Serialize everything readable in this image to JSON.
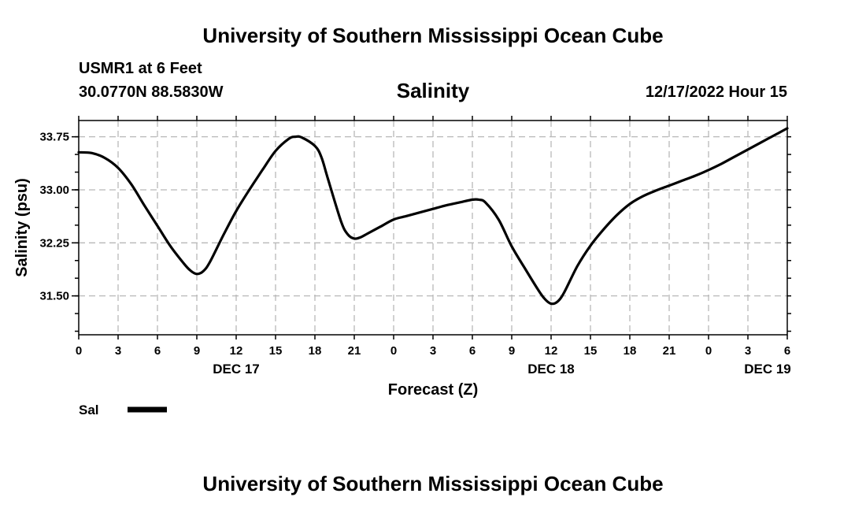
{
  "header": {
    "title": "University of Southern Mississippi Ocean Cube",
    "station": "USMR1 at 6 Feet",
    "coordinates": "30.0770N  88.5830W",
    "datetime": "12/17/2022 Hour 15"
  },
  "footer": {
    "title": "University of Southern Mississippi Ocean Cube"
  },
  "chart_data": {
    "type": "line",
    "title": "Salinity",
    "xlabel": "Forecast (Z)",
    "ylabel": "Salinity (psu)",
    "xlim": [
      0,
      54
    ],
    "ylim": [
      30.95,
      33.98
    ],
    "grid": true,
    "x_ticks": [
      {
        "value": 0,
        "label": "0"
      },
      {
        "value": 3,
        "label": "3"
      },
      {
        "value": 6,
        "label": "6"
      },
      {
        "value": 9,
        "label": "9"
      },
      {
        "value": 12,
        "label": "12"
      },
      {
        "value": 15,
        "label": "15"
      },
      {
        "value": 18,
        "label": "18"
      },
      {
        "value": 21,
        "label": "21"
      },
      {
        "value": 24,
        "label": "0"
      },
      {
        "value": 27,
        "label": "3"
      },
      {
        "value": 30,
        "label": "6"
      },
      {
        "value": 33,
        "label": "9"
      },
      {
        "value": 36,
        "label": "12"
      },
      {
        "value": 39,
        "label": "15"
      },
      {
        "value": 42,
        "label": "18"
      },
      {
        "value": 45,
        "label": "21"
      },
      {
        "value": 48,
        "label": "0"
      },
      {
        "value": 51,
        "label": "3"
      },
      {
        "value": 54,
        "label": "6"
      }
    ],
    "date_labels": [
      {
        "value": 12,
        "label": "DEC 17"
      },
      {
        "value": 36,
        "label": "DEC 18"
      },
      {
        "value": 52.5,
        "label": "DEC 19"
      }
    ],
    "y_ticks": [
      {
        "value": 31.5,
        "label": "31.50"
      },
      {
        "value": 32.25,
        "label": "32.25"
      },
      {
        "value": 33.0,
        "label": "33.00"
      },
      {
        "value": 33.75,
        "label": "33.75"
      }
    ],
    "y_minor_step": 0.25,
    "legend": {
      "label": "Sal",
      "position": "bottom-left"
    },
    "series": [
      {
        "name": "Sal",
        "x": [
          0,
          1,
          2,
          3,
          4,
          5,
          6,
          7,
          8,
          8.5,
          9,
          9.5,
          10,
          11,
          12,
          13,
          14,
          15,
          16,
          16.5,
          17,
          18,
          18.5,
          19,
          20,
          20.5,
          21,
          21.5,
          22,
          23,
          24,
          25,
          26,
          27,
          28,
          29,
          30,
          30.5,
          31,
          32,
          33,
          34,
          35,
          35.5,
          36,
          36.5,
          37,
          38,
          39,
          40,
          41,
          42,
          43,
          44,
          45,
          46,
          47,
          48,
          49,
          50,
          51,
          52,
          53,
          54
        ],
        "values": [
          33.53,
          33.52,
          33.45,
          33.31,
          33.08,
          32.78,
          32.49,
          32.2,
          31.96,
          31.86,
          31.81,
          31.85,
          31.98,
          32.35,
          32.7,
          33.0,
          33.28,
          33.55,
          33.72,
          33.75,
          33.74,
          33.62,
          33.46,
          33.15,
          32.55,
          32.37,
          32.31,
          32.33,
          32.38,
          32.48,
          32.58,
          32.63,
          32.68,
          32.73,
          32.78,
          32.82,
          32.86,
          32.86,
          32.82,
          32.58,
          32.2,
          31.89,
          31.59,
          31.46,
          31.39,
          31.42,
          31.55,
          31.92,
          32.21,
          32.44,
          32.64,
          32.8,
          32.91,
          32.99,
          33.06,
          33.13,
          33.2,
          33.28,
          33.37,
          33.47,
          33.57,
          33.67,
          33.77,
          33.87
        ]
      }
    ]
  }
}
